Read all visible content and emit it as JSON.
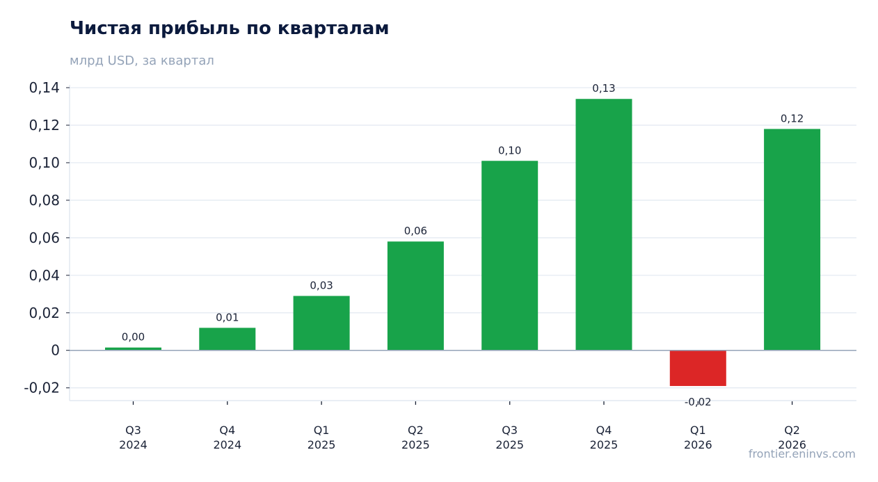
{
  "chart_data": {
    "type": "bar",
    "title": "Чистая прибыль по кварталам",
    "subtitle": "млрд USD, за квартал",
    "categories": [
      [
        "Q3",
        "2024"
      ],
      [
        "Q4",
        "2024"
      ],
      [
        "Q1",
        "2025"
      ],
      [
        "Q2",
        "2025"
      ],
      [
        "Q3",
        "2025"
      ],
      [
        "Q4",
        "2025"
      ],
      [
        "Q1",
        "2026"
      ],
      [
        "Q2",
        "2026"
      ]
    ],
    "values": [
      0.0015,
      0.012,
      0.029,
      0.058,
      0.101,
      0.134,
      -0.019,
      0.118
    ],
    "value_labels": [
      "0,00",
      "0,01",
      "0,03",
      "0,06",
      "0,10",
      "0,13",
      "-0,02",
      "0,12"
    ],
    "y_ticks": [
      -0.02,
      0,
      0.02,
      0.04,
      0.06,
      0.08,
      0.1,
      0.12,
      0.14
    ],
    "y_tick_labels": [
      "-0,02",
      "0",
      "0,02",
      "0,04",
      "0,06",
      "0,08",
      "0,10",
      "0,12",
      "0,14"
    ],
    "ylim": [
      -0.0268,
      0.1415
    ],
    "grid": true,
    "colors": {
      "positive": "#18a34a",
      "negative": "#dc2626",
      "grid": "#e2e8f0",
      "zero_line": "#94a3b8"
    }
  },
  "source": "frontier.eninvs.com"
}
